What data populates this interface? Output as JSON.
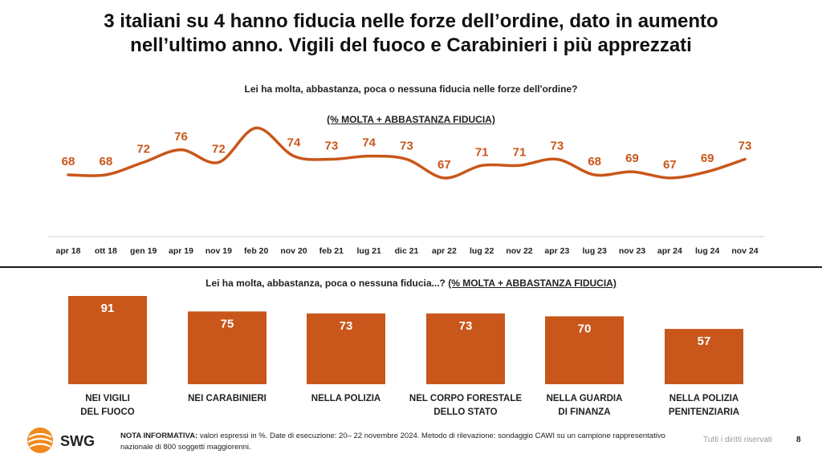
{
  "title_line1": "3 italiani su 4 hanno fiducia nelle forze dell’ordine, dato in aumento",
  "title_line2": "nell’ultimo anno. Vigili del fuoco e Carabinieri i più apprezzati",
  "accent_color": "#c9561a",
  "chart_data": [
    {
      "type": "line",
      "title": "Lei ha molta, abbastanza, poca o nessuna fiducia nelle forze dell'ordine?",
      "subtitle": "(% MOLTA + ABBASTANZA FIDUCIA)",
      "x": [
        "apr 18",
        "ott 18",
        "gen 19",
        "apr 19",
        "nov 19",
        "feb 20",
        "nov 20",
        "feb 21",
        "lug 21",
        "dic 21",
        "apr 22",
        "lug 22",
        "nov 22",
        "apr 23",
        "lug 23",
        "nov 23",
        "apr 24",
        "lug 24",
        "nov 24"
      ],
      "values": [
        68,
        68,
        72,
        76,
        72,
        83,
        74,
        73,
        74,
        73,
        67,
        71,
        71,
        73,
        68,
        69,
        67,
        69,
        73
      ],
      "color": "#c9561a"
    },
    {
      "type": "bar",
      "title": "Lei ha molta, abbastanza, poca o nessuna fiducia...?",
      "subtitle": "(% MOLTA + ABBASTANZA FIDUCIA)",
      "categories": [
        [
          "NEI VIGILI",
          "DEL FUOCO"
        ],
        [
          "NEI CARABINIERI"
        ],
        [
          "NELLA POLIZIA"
        ],
        [
          "NEL CORPO FORESTALE",
          "DELLO STATO"
        ],
        [
          "NELLA GUARDIA",
          "DI FINANZA"
        ],
        [
          "NELLA POLIZIA",
          "PENITENZIARIA"
        ]
      ],
      "values": [
        91,
        75,
        73,
        73,
        70,
        57
      ],
      "color": "#c9561a"
    }
  ],
  "footer": {
    "logo_text": "SWG",
    "note_bold": "NOTA INFORMATIVA:",
    "note_text": " valori espressi in %. Date di esecuzione: 20– 22 novembre 2024. Metodo di rilevazione: sondaggio CAWI su un campione rappresentativo nazionale di 800 soggetti maggiorenni.",
    "rights": "Tutti i diritti riservati",
    "page_number": "8"
  }
}
